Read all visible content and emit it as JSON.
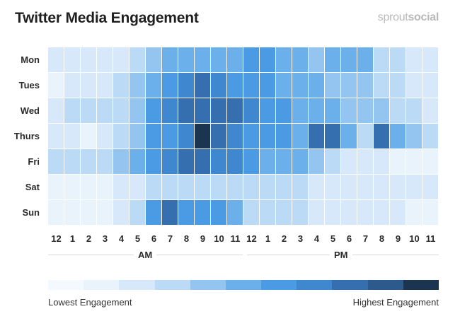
{
  "title": "Twitter Media Engagement",
  "brand": {
    "part1": "sprout",
    "part2": "social"
  },
  "chart_data": {
    "type": "heatmap",
    "title": "Twitter Media Engagement",
    "rows": [
      "Mon",
      "Tues",
      "Wed",
      "Thurs",
      "Fri",
      "Sat",
      "Sun"
    ],
    "columns": [
      "12",
      "1",
      "2",
      "3",
      "4",
      "5",
      "6",
      "7",
      "8",
      "9",
      "10",
      "11",
      "12",
      "1",
      "2",
      "3",
      "4",
      "5",
      "6",
      "7",
      "8",
      "9",
      "10",
      "11"
    ],
    "column_groups": [
      {
        "label": "AM",
        "span": 12
      },
      {
        "label": "PM",
        "span": 12
      }
    ],
    "scale_min": 0,
    "scale_max": 10,
    "values": [
      [
        2,
        2,
        2,
        2,
        2,
        3,
        4,
        5,
        5,
        5,
        5,
        5,
        6,
        6,
        5,
        5,
        4,
        5,
        5,
        5,
        3,
        3,
        2,
        2
      ],
      [
        1,
        2,
        2,
        2,
        3,
        4,
        5,
        6,
        7,
        8,
        7,
        6,
        6,
        6,
        5,
        5,
        5,
        4,
        4,
        4,
        3,
        3,
        2,
        2
      ],
      [
        2,
        3,
        3,
        3,
        3,
        4,
        6,
        7,
        8,
        8,
        8,
        8,
        7,
        6,
        6,
        5,
        5,
        5,
        4,
        4,
        4,
        3,
        3,
        2
      ],
      [
        2,
        2,
        1,
        2,
        3,
        4,
        6,
        6,
        7,
        10,
        8,
        7,
        6,
        6,
        6,
        5,
        8,
        8,
        5,
        3,
        8,
        5,
        4,
        3
      ],
      [
        3,
        3,
        3,
        3,
        4,
        5,
        6,
        7,
        8,
        8,
        7,
        7,
        6,
        5,
        5,
        5,
        4,
        3,
        2,
        2,
        2,
        1,
        1,
        1
      ],
      [
        1,
        1,
        1,
        1,
        2,
        2,
        3,
        3,
        3,
        3,
        3,
        3,
        3,
        3,
        3,
        3,
        2,
        2,
        2,
        2,
        2,
        2,
        2,
        2
      ],
      [
        1,
        1,
        1,
        1,
        2,
        3,
        6,
        8,
        6,
        6,
        6,
        5,
        3,
        3,
        3,
        3,
        2,
        2,
        2,
        2,
        2,
        2,
        1,
        1
      ]
    ],
    "legend": {
      "low_label": "Lowest Engagement",
      "high_label": "Highest Engagement",
      "steps": 11
    },
    "colors": [
      "#f3f9fe",
      "#e9f3fc",
      "#d6e8f9",
      "#bbdaf6",
      "#93c5f0",
      "#6bb0ea",
      "#4a9ae4",
      "#3f87cf",
      "#356fb0",
      "#2c5a8d",
      "#1b3450"
    ]
  }
}
